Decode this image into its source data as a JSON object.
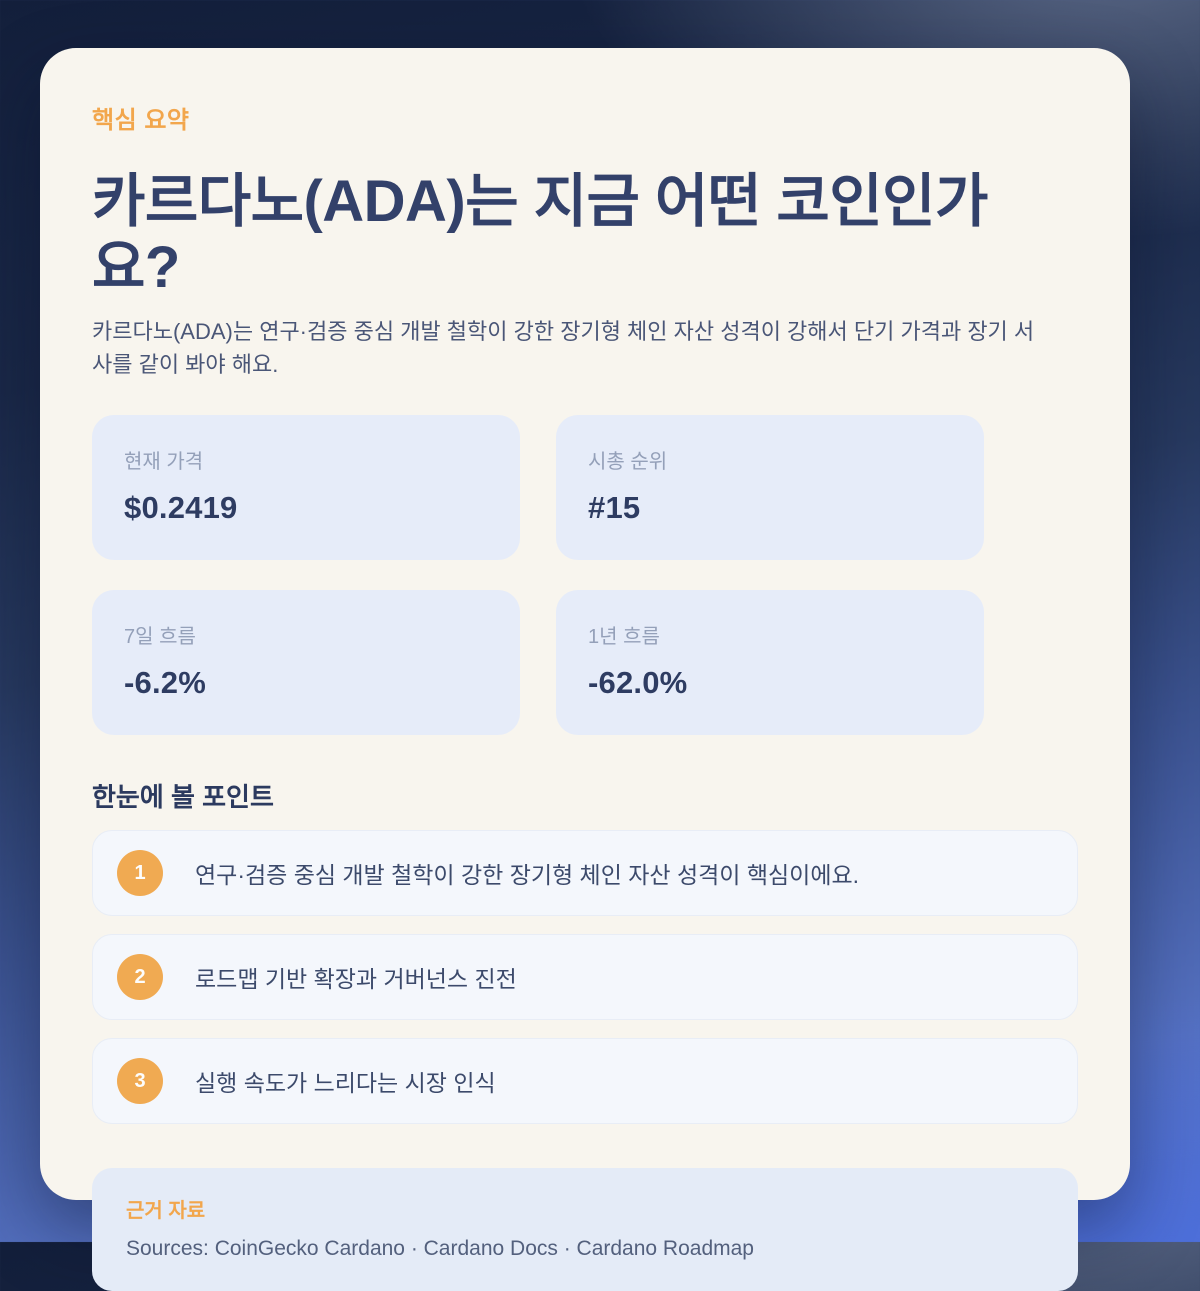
{
  "card": {
    "eyebrow": "핵심 요약",
    "title": "카르다노(ADA)는 지금 어떤 코인인가요?",
    "subtitle": "카르다노(ADA)는 연구·검증 중심 개발 철학이 강한 장기형 체인 자산 성격이 강해서 단기 가격과 장기 서사를 같이 봐야 해요.",
    "stats": [
      {
        "label": "현재 가격",
        "value": "$0.2419"
      },
      {
        "label": "시총 순위",
        "value": "#15"
      },
      {
        "label": "7일 흐름",
        "value": "-6.2%"
      },
      {
        "label": "1년 흐름",
        "value": "-62.0%"
      }
    ],
    "points_heading": "한눈에 볼 포인트",
    "points": [
      {
        "num": "1",
        "text": "연구·검증 중심 개발 철학이 강한 장기형 체인 자산 성격이 핵심이에요."
      },
      {
        "num": "2",
        "text": "로드맵 기반 확장과 거버넌스 진전"
      },
      {
        "num": "3",
        "text": "실행 속도가 느리다는 시장 인식"
      }
    ],
    "sources": {
      "label": "근거 자료",
      "text": "Sources: CoinGecko Cardano · Cardano Docs · Cardano Roadmap"
    },
    "colors": {
      "accent_orange": "#F2A64C",
      "point_circle_orange": "#F0AA52",
      "heading_navy": "#33416A",
      "stat_value_navy": "#2E3C62",
      "stat_box_bg": "#E6ECF9",
      "card_bg": "#F8F5EE",
      "background_top": "#131F3B",
      "background_bottom": "#5273D5"
    }
  }
}
